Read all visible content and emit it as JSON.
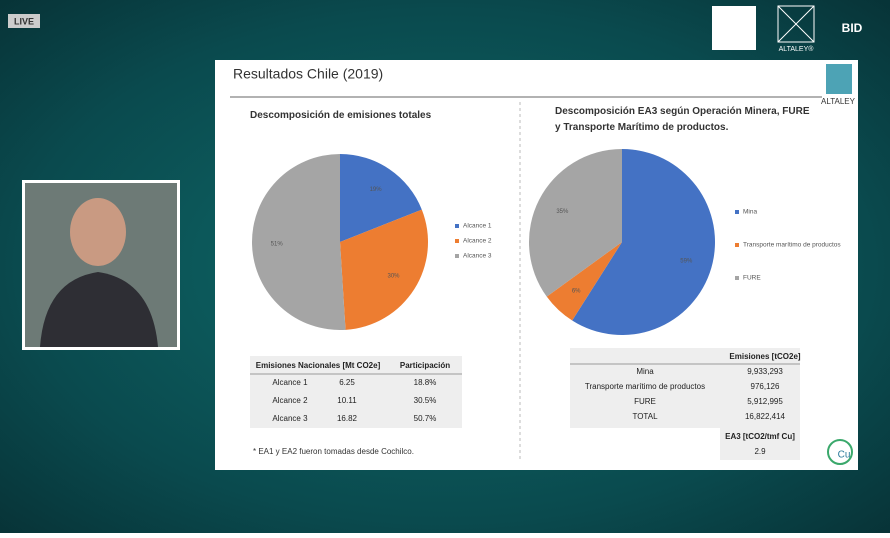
{
  "stream": {
    "badge": "LIVE",
    "logos": [
      "ALTALEY®",
      "BID"
    ]
  },
  "slide": {
    "title": "Resultados Chile (2019)",
    "logo": "ALTALEY",
    "left_table": {
      "header": [
        "Emisiones Nacionales [Mt CO2e]",
        "Participación"
      ],
      "rows": [
        [
          "Alcance 1",
          "6.25",
          "18.8%"
        ],
        [
          "Alcance 2",
          "10.11",
          "30.5%"
        ],
        [
          "Alcance 3",
          "16.82",
          "50.7%"
        ]
      ]
    },
    "right_table": {
      "header": "Emisiones [tCO2e]",
      "rows": [
        [
          "Mina",
          "9,933,293"
        ],
        [
          "Transporte marítimo de productos",
          "976,126"
        ],
        [
          "FURE",
          "5,912,995"
        ],
        [
          "TOTAL",
          "16,822,414"
        ]
      ],
      "ratio_header": "EA3 [tCO2/tmf Cu]",
      "ratio": "2.9"
    },
    "footnote": "* EA1 y EA2 fueron tomadas desde Cochilco.",
    "badge": "Cu"
  },
  "chart_data": [
    {
      "type": "pie",
      "title": "Descomposición de emisiones totales",
      "categories": [
        "Alcance 1",
        "Alcance 2",
        "Alcance 3"
      ],
      "values": [
        19,
        30,
        51
      ],
      "value_labels": [
        "19%",
        "30%",
        "51%"
      ],
      "colors": [
        "#4472c4",
        "#ed7d31",
        "#a5a5a5"
      ],
      "legend": "right"
    },
    {
      "type": "pie",
      "title": "Descomposición EA3 según Operación Minera, FURE y Transporte Marítimo de productos.",
      "categories": [
        "Mina",
        "Transporte marítimo de productos",
        "FURE"
      ],
      "values": [
        59,
        6,
        35
      ],
      "value_labels": [
        "59%",
        "6%",
        "35%"
      ],
      "colors": [
        "#4472c4",
        "#ed7d31",
        "#a5a5a5"
      ],
      "legend": "right"
    }
  ]
}
